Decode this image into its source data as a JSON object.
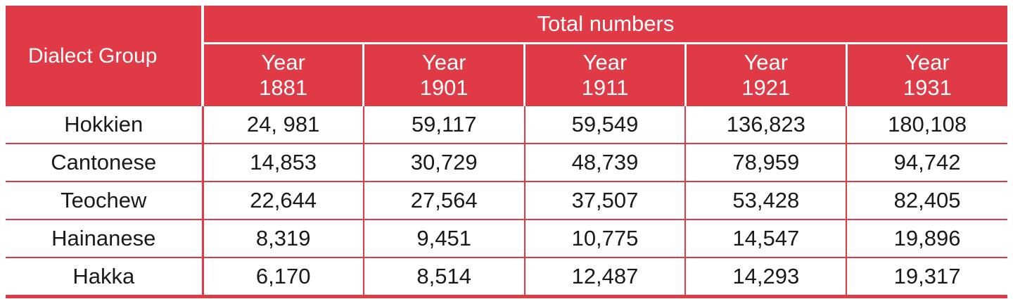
{
  "table": {
    "header": {
      "dialect_group": "Dialect Group",
      "total_numbers": "Total numbers",
      "years": [
        {
          "label": "Year",
          "value": "1881"
        },
        {
          "label": "Year",
          "value": "1901"
        },
        {
          "label": "Year",
          "value": "1911"
        },
        {
          "label": "Year",
          "value": "1921"
        },
        {
          "label": "Year",
          "value": "1931"
        }
      ]
    },
    "rows": [
      {
        "name": "Hokkien",
        "values": [
          "24, 981",
          "59,117",
          "59,549",
          "136,823",
          "180,108"
        ]
      },
      {
        "name": "Cantonese",
        "values": [
          "14,853",
          "30,729",
          "48,739",
          "78,959",
          "94,742"
        ]
      },
      {
        "name": "Teochew",
        "values": [
          "22,644",
          "27,564",
          "37,507",
          "53,428",
          "82,405"
        ]
      },
      {
        "name": "Hainanese",
        "values": [
          "8,319",
          "9,451",
          "10,775",
          "14,547",
          "19,896"
        ]
      },
      {
        "name": "Hakka",
        "values": [
          "6,170",
          "8,514",
          "12,487",
          "14,293",
          "19,317"
        ]
      }
    ],
    "colors": {
      "header_bg": "#e03a47",
      "header_text": "#ffffff",
      "rule": "#e03a47",
      "body_text": "#1a1a1a"
    }
  }
}
